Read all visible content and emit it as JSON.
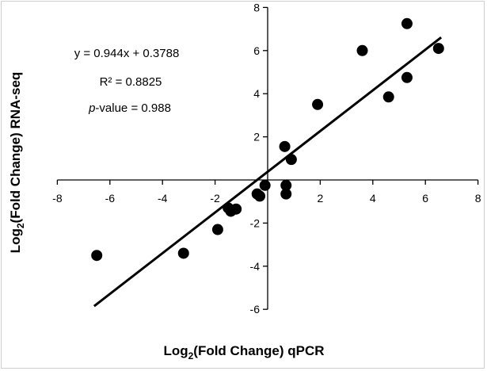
{
  "chart_data": {
    "type": "scatter",
    "xlabel": {
      "prefix": "Log",
      "subscript": "2",
      "suffix": "(Fold Change) qPCR"
    },
    "ylabel": {
      "prefix": "Log",
      "subscript": "2",
      "suffix": "(Fold Change) RNA-seq"
    },
    "xlim": [
      -8,
      8
    ],
    "ylim": [
      -6,
      8
    ],
    "xticks": [
      -8,
      -6,
      -4,
      -2,
      2,
      4,
      6,
      8
    ],
    "yticks": [
      -6,
      -4,
      -2,
      2,
      4,
      6,
      8
    ],
    "grid": false,
    "legend": "none",
    "annotations": {
      "equation": "y = 0.944x + 0.3788",
      "r_squared": "R² = 0.8825",
      "p_value_italic": "p",
      "p_value_rest": "-value = 0.988"
    },
    "trendline": {
      "slope": 0.944,
      "intercept": 0.3788,
      "x_range": [
        -6.6,
        6.6
      ]
    },
    "points": [
      {
        "x": -6.5,
        "y": -3.5
      },
      {
        "x": -3.2,
        "y": -3.4
      },
      {
        "x": -1.9,
        "y": -2.3
      },
      {
        "x": -1.5,
        "y": -1.3
      },
      {
        "x": -1.4,
        "y": -1.45
      },
      {
        "x": -1.2,
        "y": -1.35
      },
      {
        "x": -0.4,
        "y": -0.65
      },
      {
        "x": -0.3,
        "y": -0.75
      },
      {
        "x": -0.1,
        "y": -0.25
      },
      {
        "x": 0.7,
        "y": -0.65
      },
      {
        "x": 0.7,
        "y": -0.25
      },
      {
        "x": 0.65,
        "y": 1.55
      },
      {
        "x": 0.9,
        "y": 0.95
      },
      {
        "x": 1.9,
        "y": 3.5
      },
      {
        "x": 3.6,
        "y": 6.0
      },
      {
        "x": 4.6,
        "y": 3.85
      },
      {
        "x": 5.3,
        "y": 4.75
      },
      {
        "x": 5.3,
        "y": 7.25
      },
      {
        "x": 6.5,
        "y": 6.1
      }
    ],
    "colors": {
      "points": "#000000",
      "line": "#000000",
      "axis": "#000000",
      "border": "#cfcfcf"
    }
  }
}
